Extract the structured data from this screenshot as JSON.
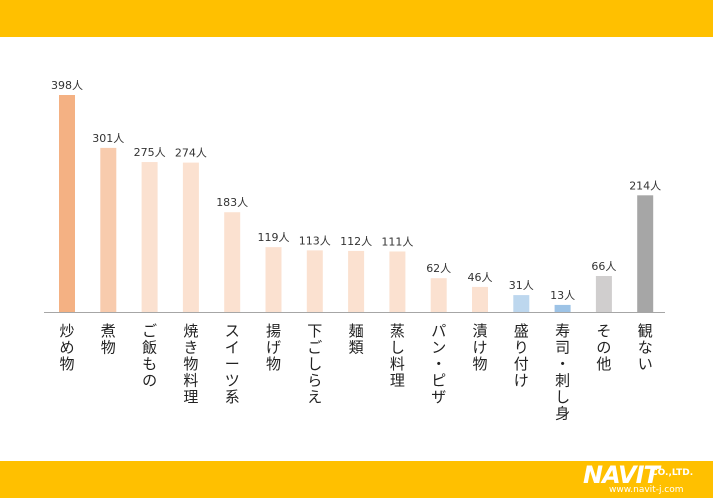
{
  "brand": {
    "name": "NAVIT",
    "suffix": "CO.,LTD.",
    "url": "www.navit-j.com"
  },
  "chart_data": {
    "type": "bar",
    "title": "",
    "xlabel": "",
    "ylabel": "",
    "ylim": [
      0,
      398
    ],
    "grid": false,
    "value_suffix": "人",
    "categories": [
      "炒め物",
      "煮物",
      "ご飯もの",
      "焼き物料理",
      "スイーツ系",
      "揚げ物",
      "下ごしらえ",
      "麺類",
      "蒸し料理",
      "パン・ピザ",
      "漬け物",
      "盛り付け",
      "寿司・刺し身",
      "その他",
      "観ない"
    ],
    "values": [
      398,
      301,
      275,
      274,
      183,
      119,
      113,
      112,
      111,
      62,
      46,
      31,
      13,
      66,
      214
    ],
    "colors": [
      "#f4b183",
      "#f8cbad",
      "#fbe1d0",
      "#fbe1d0",
      "#fbe1d0",
      "#fbe1d0",
      "#fbe1d0",
      "#fbe1d0",
      "#fbe1d0",
      "#fbe1d0",
      "#fbe1d0",
      "#bdd7ee",
      "#9dc3e6",
      "#d0cece",
      "#a6a6a6"
    ]
  }
}
